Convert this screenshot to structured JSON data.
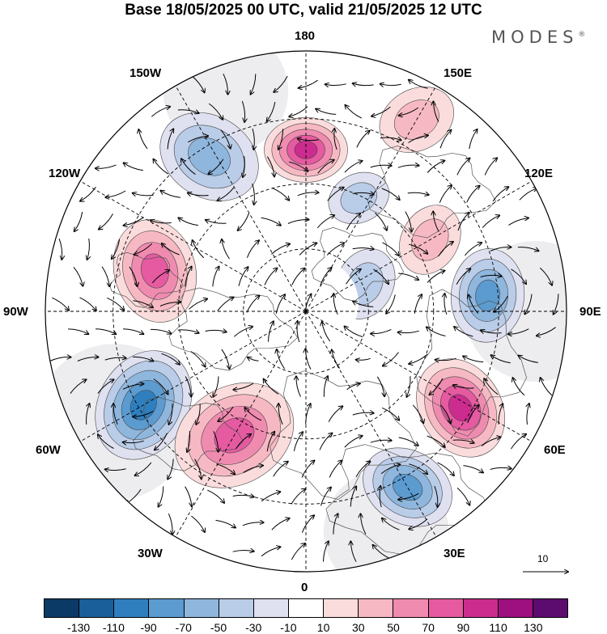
{
  "title": "Base 18/05/2025 00 UTC, valid 21/05/2025 12 UTC",
  "logo": "MODES",
  "logo_mark": "®",
  "longitude_labels": {
    "top": "180",
    "top_left": "150W",
    "top_right": "150E",
    "upper_left": "120W",
    "upper_right": "120E",
    "left": "90W",
    "right": "90E",
    "lower_left": "60W",
    "lower_right": "60E",
    "bottom_left": "30W",
    "bottom_right": "30E",
    "bottom": "0"
  },
  "reference_vector_label": "10",
  "colorbar": {
    "colors": [
      "#0b3a66",
      "#1a5f99",
      "#2f7fbf",
      "#5b9bd0",
      "#8fb6dd",
      "#b9cce8",
      "#dfe1f0",
      "#ffffff",
      "#fbdcdc",
      "#f6b9c4",
      "#f08bb0",
      "#e55aa0",
      "#cc2c8e",
      "#9e0f7f",
      "#5c0c6e"
    ],
    "ticks": [
      "-130",
      "-110",
      "-90",
      "-70",
      "-50",
      "-30",
      "-10",
      "10",
      "30",
      "50",
      "70",
      "90",
      "110",
      "130"
    ]
  },
  "anomaly_centers": [
    {
      "lon": 180,
      "lat_dist": 0.62,
      "value": 95,
      "radius": 0.16
    },
    {
      "lon": 212,
      "lat_dist": 0.7,
      "value": -65,
      "radius": 0.2
    },
    {
      "lon": 255,
      "lat_dist": 0.6,
      "value": 85,
      "radius": 0.2
    },
    {
      "lon": 300,
      "lat_dist": 0.72,
      "value": -95,
      "radius": 0.22
    },
    {
      "lon": 330,
      "lat_dist": 0.55,
      "value": 75,
      "radius": 0.24
    },
    {
      "lon": 30,
      "lat_dist": 0.78,
      "value": -70,
      "radius": 0.18
    },
    {
      "lon": 58,
      "lat_dist": 0.7,
      "value": 90,
      "radius": 0.2
    },
    {
      "lon": 95,
      "lat_dist": 0.7,
      "value": -70,
      "radius": 0.18
    },
    {
      "lon": 120,
      "lat_dist": 0.55,
      "value": 40,
      "radius": 0.14
    },
    {
      "lon": 150,
      "lat_dist": 0.85,
      "value": 35,
      "radius": 0.15
    },
    {
      "lon": 115,
      "lat_dist": 0.25,
      "value": -30,
      "radius": 0.14
    },
    {
      "lon": 155,
      "lat_dist": 0.48,
      "value": -35,
      "radius": 0.12
    }
  ]
}
